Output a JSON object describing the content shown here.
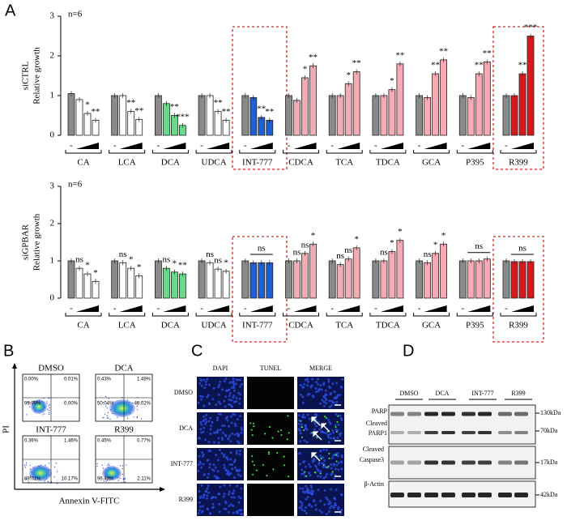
{
  "panel_labels": [
    "A",
    "B",
    "C",
    "D"
  ],
  "chart_data": [
    {
      "type": "bar",
      "note": "n=6",
      "ylabel": [
        "siCTRL",
        "Relative growth"
      ],
      "ylim": [
        0,
        3
      ],
      "yticks": [
        0,
        1,
        2,
        3
      ],
      "control_color": "#8a8a8a",
      "dose_label": "-",
      "groups": [
        {
          "label": "CA",
          "color": "#ffffff",
          "values": [
            1.05,
            0.9,
            0.55,
            0.38
          ],
          "significance": [
            null,
            null,
            "*",
            "**"
          ]
        },
        {
          "label": "LCA",
          "color": "#ffffff",
          "values": [
            1.0,
            1.0,
            0.6,
            0.4
          ],
          "significance": [
            null,
            null,
            "**",
            "**"
          ]
        },
        {
          "label": "DCA",
          "color": "#6fd68d",
          "values": [
            1.0,
            0.8,
            0.5,
            0.25
          ],
          "significance": [
            null,
            null,
            "**",
            "***"
          ]
        },
        {
          "label": "UDCA",
          "color": "#ffffff",
          "values": [
            1.0,
            1.0,
            0.6,
            0.38
          ],
          "significance": [
            null,
            null,
            "**",
            "**"
          ]
        },
        {
          "label": "INT-777",
          "color": "#1f5fd6",
          "values": [
            1.0,
            0.95,
            0.45,
            0.38
          ],
          "significance": [
            null,
            null,
            "**",
            "**"
          ]
        },
        {
          "label": "CDCA",
          "color": "#f4abb3",
          "values": [
            1.0,
            0.88,
            1.45,
            1.75
          ],
          "significance": [
            null,
            null,
            "*",
            "**"
          ]
        },
        {
          "label": "TCA",
          "color": "#f4abb3",
          "values": [
            1.0,
            1.0,
            1.3,
            1.6
          ],
          "significance": [
            null,
            null,
            "*",
            "**"
          ]
        },
        {
          "label": "TDCA",
          "color": "#f4abb3",
          "values": [
            1.0,
            1.0,
            1.15,
            1.8
          ],
          "significance": [
            null,
            null,
            "*",
            "**"
          ]
        },
        {
          "label": "GCA",
          "color": "#f4abb3",
          "values": [
            1.0,
            0.95,
            1.55,
            1.9
          ],
          "significance": [
            null,
            null,
            "**",
            "**"
          ]
        },
        {
          "label": "P395",
          "color": "#f4abb3",
          "values": [
            1.0,
            0.95,
            1.55,
            1.85
          ],
          "significance": [
            null,
            null,
            "**",
            "**"
          ]
        },
        {
          "label": "R399",
          "color": "#d7191c",
          "values": [
            1.0,
            1.0,
            1.55,
            2.5
          ],
          "significance": [
            null,
            null,
            "**",
            "***"
          ]
        }
      ]
    },
    {
      "type": "bar",
      "note": "n=6",
      "ylabel": [
        "siGPBAR",
        "Relative growth"
      ],
      "ylim": [
        0,
        3
      ],
      "yticks": [
        0,
        1,
        2,
        3
      ],
      "control_color": "#8a8a8a",
      "dose_label": "-",
      "groups": [
        {
          "label": "CA",
          "color": "#ffffff",
          "values": [
            1.0,
            0.8,
            0.65,
            0.45
          ],
          "significance": [
            null,
            "ns",
            "*",
            "*"
          ]
        },
        {
          "label": "LCA",
          "color": "#ffffff",
          "values": [
            1.0,
            0.95,
            0.8,
            0.6
          ],
          "significance": [
            null,
            "ns",
            "*",
            "*"
          ]
        },
        {
          "label": "DCA",
          "color": "#6fd68d",
          "values": [
            1.0,
            0.8,
            0.7,
            0.65
          ],
          "significance": [
            null,
            "ns",
            "*",
            "**"
          ]
        },
        {
          "label": "UDCA",
          "color": "#ffffff",
          "values": [
            1.0,
            0.95,
            0.78,
            0.72
          ],
          "significance": [
            null,
            "ns",
            "ns",
            "*"
          ]
        },
        {
          "label": "INT-777",
          "color": "#1f5fd6",
          "values": [
            1.0,
            0.95,
            0.95,
            0.95
          ],
          "bracket": "ns"
        },
        {
          "label": "CDCA",
          "color": "#f4abb3",
          "values": [
            1.0,
            1.0,
            1.2,
            1.45
          ],
          "significance": [
            null,
            "ns",
            "ns",
            "*"
          ]
        },
        {
          "label": "TCA",
          "color": "#f4abb3",
          "values": [
            1.0,
            0.9,
            1.05,
            1.35
          ],
          "significance": [
            null,
            "ns",
            "ns",
            "*"
          ]
        },
        {
          "label": "TDCA",
          "color": "#f4abb3",
          "values": [
            1.0,
            1.0,
            1.25,
            1.55
          ],
          "significance": [
            null,
            "ns",
            "*",
            "*"
          ]
        },
        {
          "label": "GCA",
          "color": "#f4abb3",
          "values": [
            1.0,
            0.95,
            1.2,
            1.45
          ],
          "significance": [
            null,
            "ns",
            "*",
            "*"
          ]
        },
        {
          "label": "P395",
          "color": "#f4abb3",
          "values": [
            1.0,
            1.0,
            1.0,
            1.05
          ],
          "bracket": "ns"
        },
        {
          "label": "R399",
          "color": "#d7191c",
          "values": [
            1.0,
            0.98,
            0.98,
            0.98
          ],
          "bracket": "ns"
        }
      ]
    }
  ],
  "flow": {
    "y_label": "PI",
    "x_label": "Annexin V-FITC",
    "plots": [
      {
        "title": "DMSO",
        "quadrants": [
          "0.00%",
          "0.01%",
          "99.99%",
          "0.00%"
        ]
      },
      {
        "title": "DCA",
        "quadrants": [
          "0.43%",
          "1.49%",
          "50.04%",
          "48.02%"
        ]
      },
      {
        "title": "INT-777",
        "quadrants": [
          "0.36%",
          "1.46%",
          "88.01%",
          "10.17%"
        ]
      },
      {
        "title": "R399",
        "quadrants": [
          "0.45%",
          "0.77%",
          "96.49%",
          "2.11%"
        ]
      }
    ]
  },
  "tunel": {
    "columns": [
      "DAPI",
      "TUNEL",
      "MERGE"
    ],
    "rows": [
      "DMSO",
      "DCA",
      "INT-777",
      "R399"
    ]
  },
  "western": {
    "groups": [
      "DMSO",
      "DCA",
      "INT-777",
      "R399"
    ],
    "left_labels": [
      "PARP",
      "Cleaved",
      "PARP1",
      "Cleaved",
      "Caspase3",
      "β-Actin"
    ],
    "right_labels": [
      "130kDa",
      "70kDa",
      "17kDa",
      "42kDa"
    ]
  }
}
